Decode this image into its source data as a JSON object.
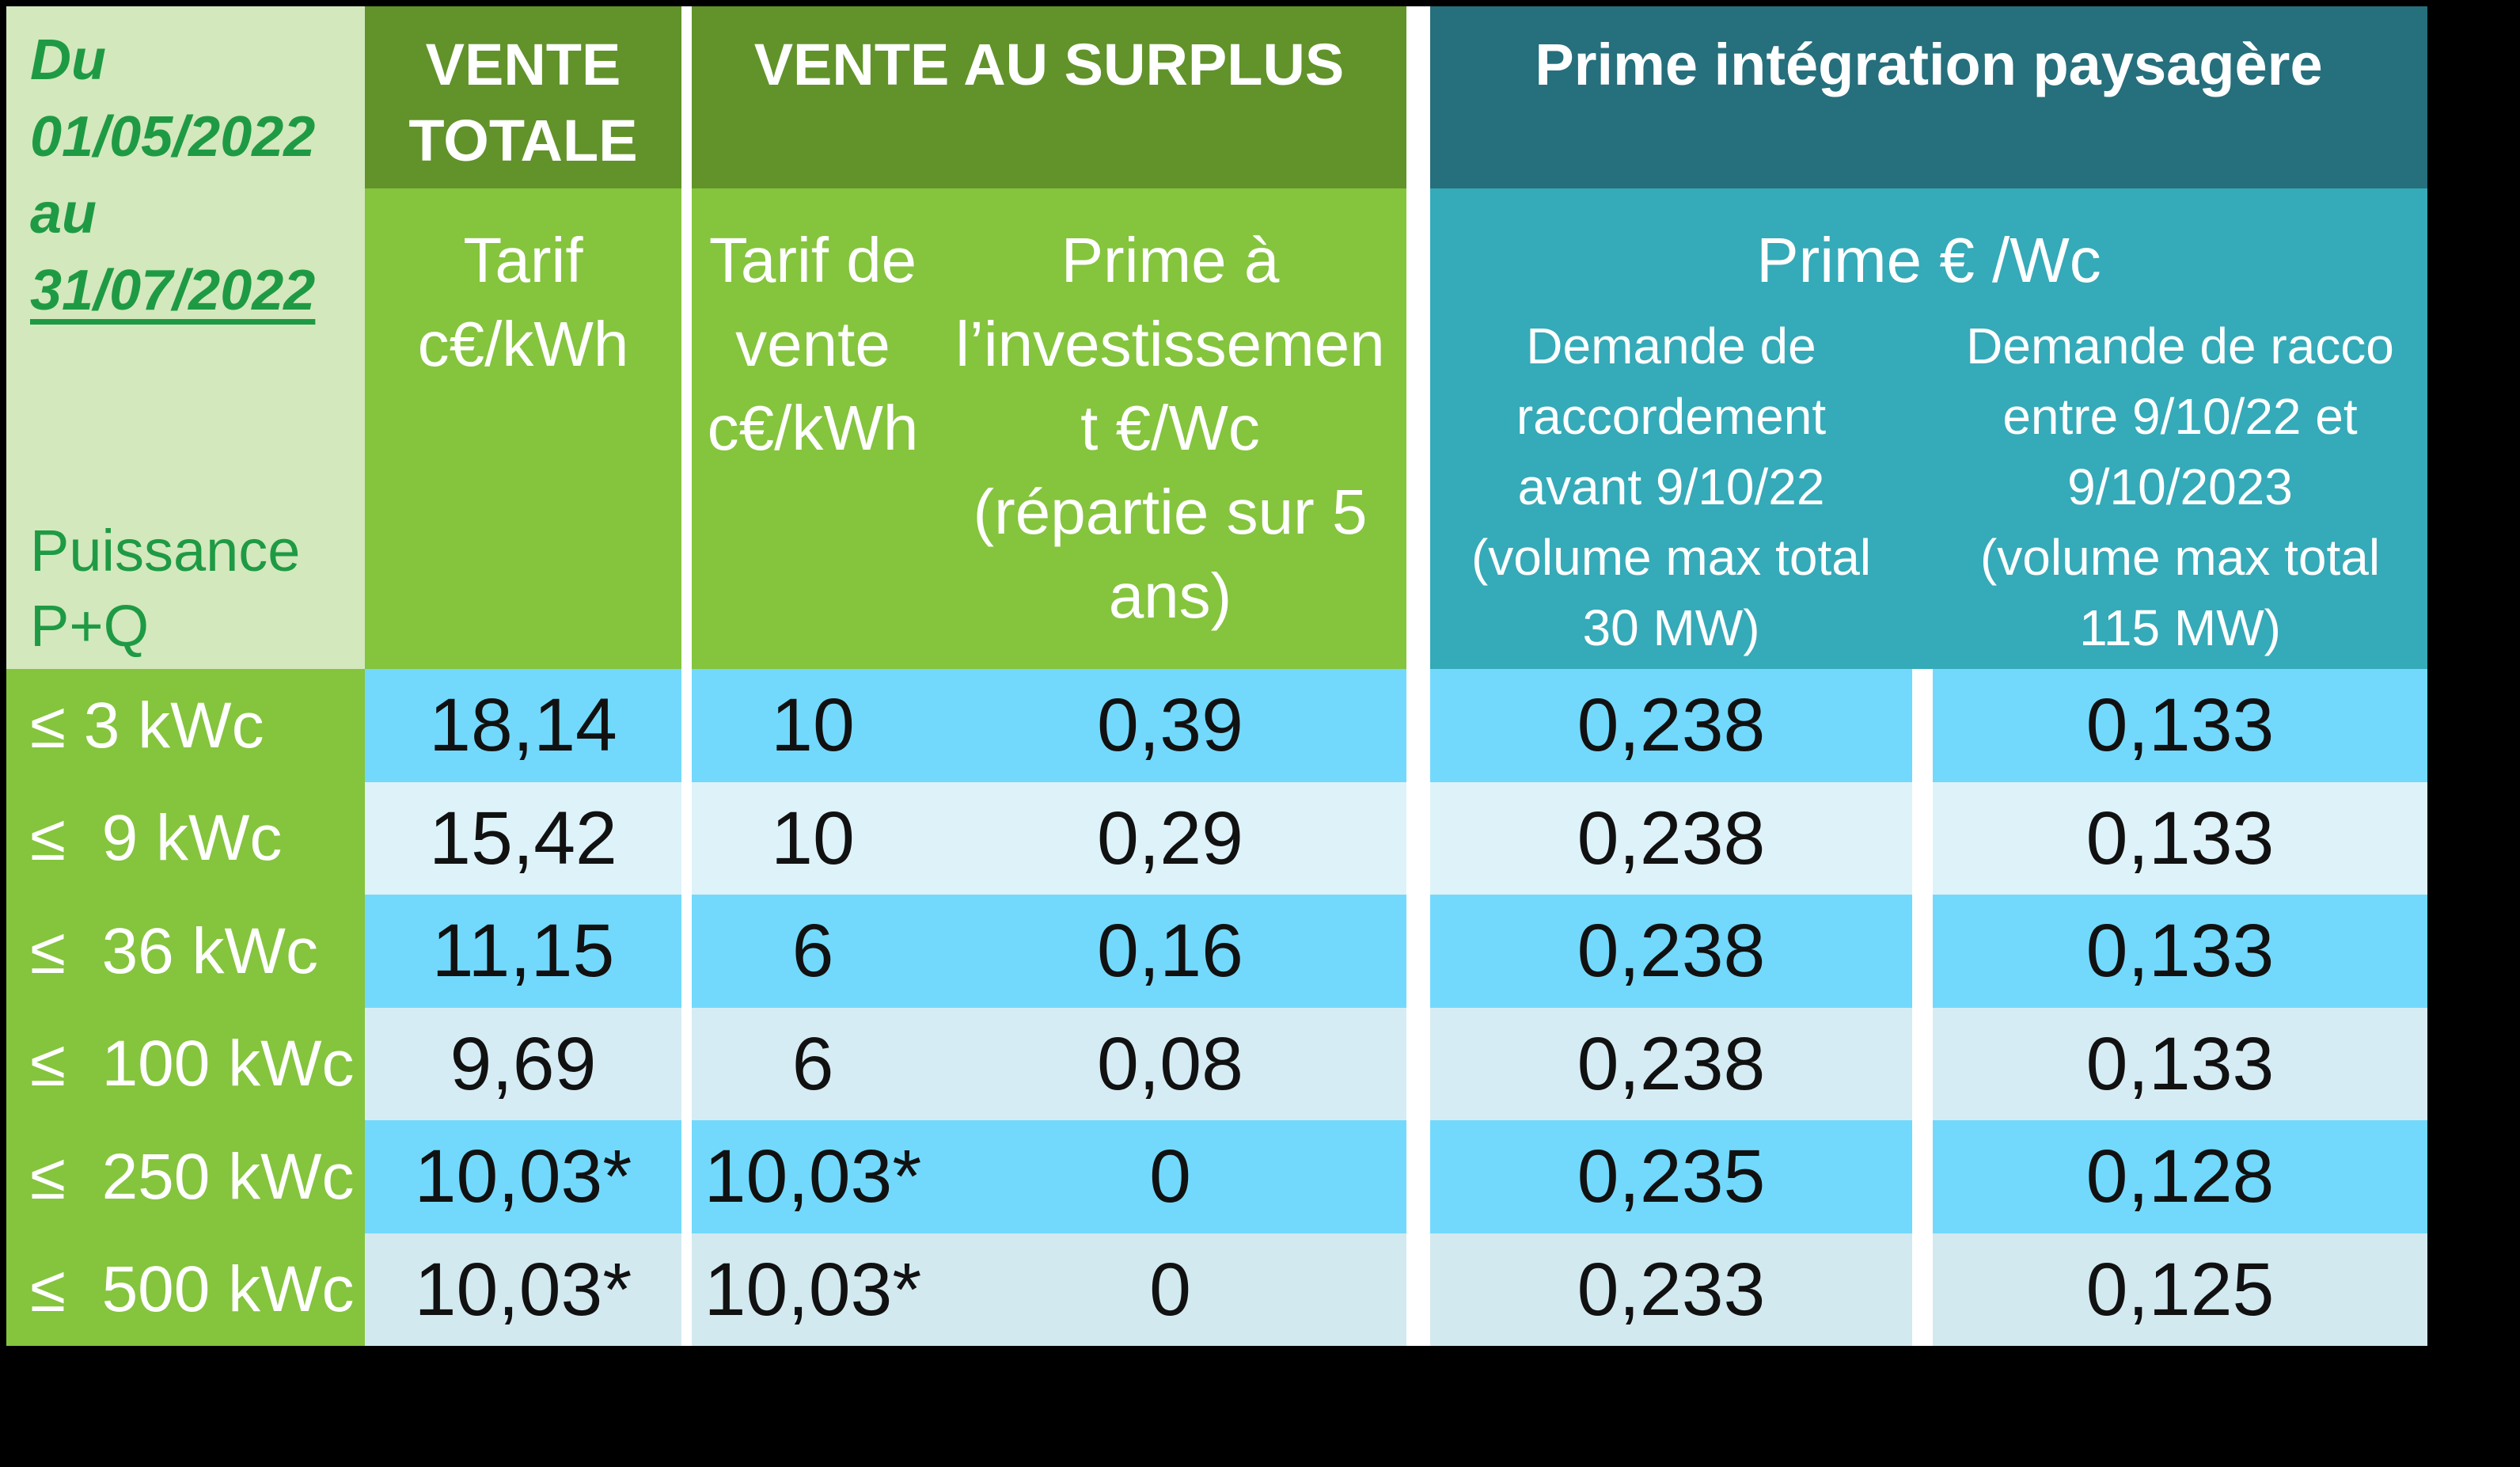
{
  "table": {
    "period": {
      "line1": "Du",
      "line2": "01/05/2022",
      "line3": "au",
      "line4": "31/07/2022"
    },
    "corner_label": "Puissance\nP+Q",
    "groups": {
      "vente_totale": {
        "title": "VENTE\nTOTALE",
        "sub": "Tarif\nc€/kWh"
      },
      "vente_surplus": {
        "title": "VENTE AU SURPLUS",
        "sub_tarif": "Tarif de\nvente\nc€/kWh",
        "sub_prime": "Prime à\nl’investissemen\nt €/Wc\n(répartie sur 5\nans)"
      },
      "prime_paysagere": {
        "title": "Prime intégration paysagère",
        "sub": "Prime € /Wc",
        "col_avant": "Demande de\nraccordement\navant 9/10/22\n(volume max total\n30 MW)",
        "col_entre": "Demande de racco\nentre 9/10/22 et\n9/10/2023\n(volume max total\n115 MW)"
      }
    },
    "rows": [
      {
        "label": "≤ 3 kWc",
        "tarif_total": "18,14",
        "tarif_surplus": "10",
        "prime_invest": "0,39",
        "prime_avant": "0,238",
        "prime_entre": "0,133"
      },
      {
        "label": "≤  9 kWc",
        "tarif_total": "15,42",
        "tarif_surplus": "10",
        "prime_invest": "0,29",
        "prime_avant": "0,238",
        "prime_entre": "0,133"
      },
      {
        "label": "≤  36 kWc",
        "tarif_total": "11,15",
        "tarif_surplus": "6",
        "prime_invest": "0,16",
        "prime_avant": "0,238",
        "prime_entre": "0,133"
      },
      {
        "label": "≤  100 kWc",
        "tarif_total": "9,69",
        "tarif_surplus": "6",
        "prime_invest": "0,08",
        "prime_avant": "0,238",
        "prime_entre": "0,133"
      },
      {
        "label": "≤  250 kWc",
        "tarif_total": "10,03*",
        "tarif_surplus": "10,03*",
        "prime_invest": "0",
        "prime_avant": "0,235",
        "prime_entre": "0,128"
      },
      {
        "label": "≤  500 kWc",
        "tarif_total": "10,03*",
        "tarif_surplus": "10,03*",
        "prime_invest": "0",
        "prime_avant": "0,233",
        "prime_entre": "0,125"
      }
    ],
    "colors": {
      "darkGreen": "#61932a",
      "midGreen": "#85c43d",
      "paleGreen": "#d3e8bd",
      "textGreen": "#1f9a44",
      "darkTeal": "#266f7c",
      "midTeal": "#35aab8",
      "blueBright": "#72d9fc",
      "bluePale1": "#def2f9",
      "bluePale2": "#d6ecf4",
      "bluePale3": "#d3e9f0",
      "dataText": "#111111",
      "background": "#000000",
      "separator": "#ffffff"
    }
  }
}
